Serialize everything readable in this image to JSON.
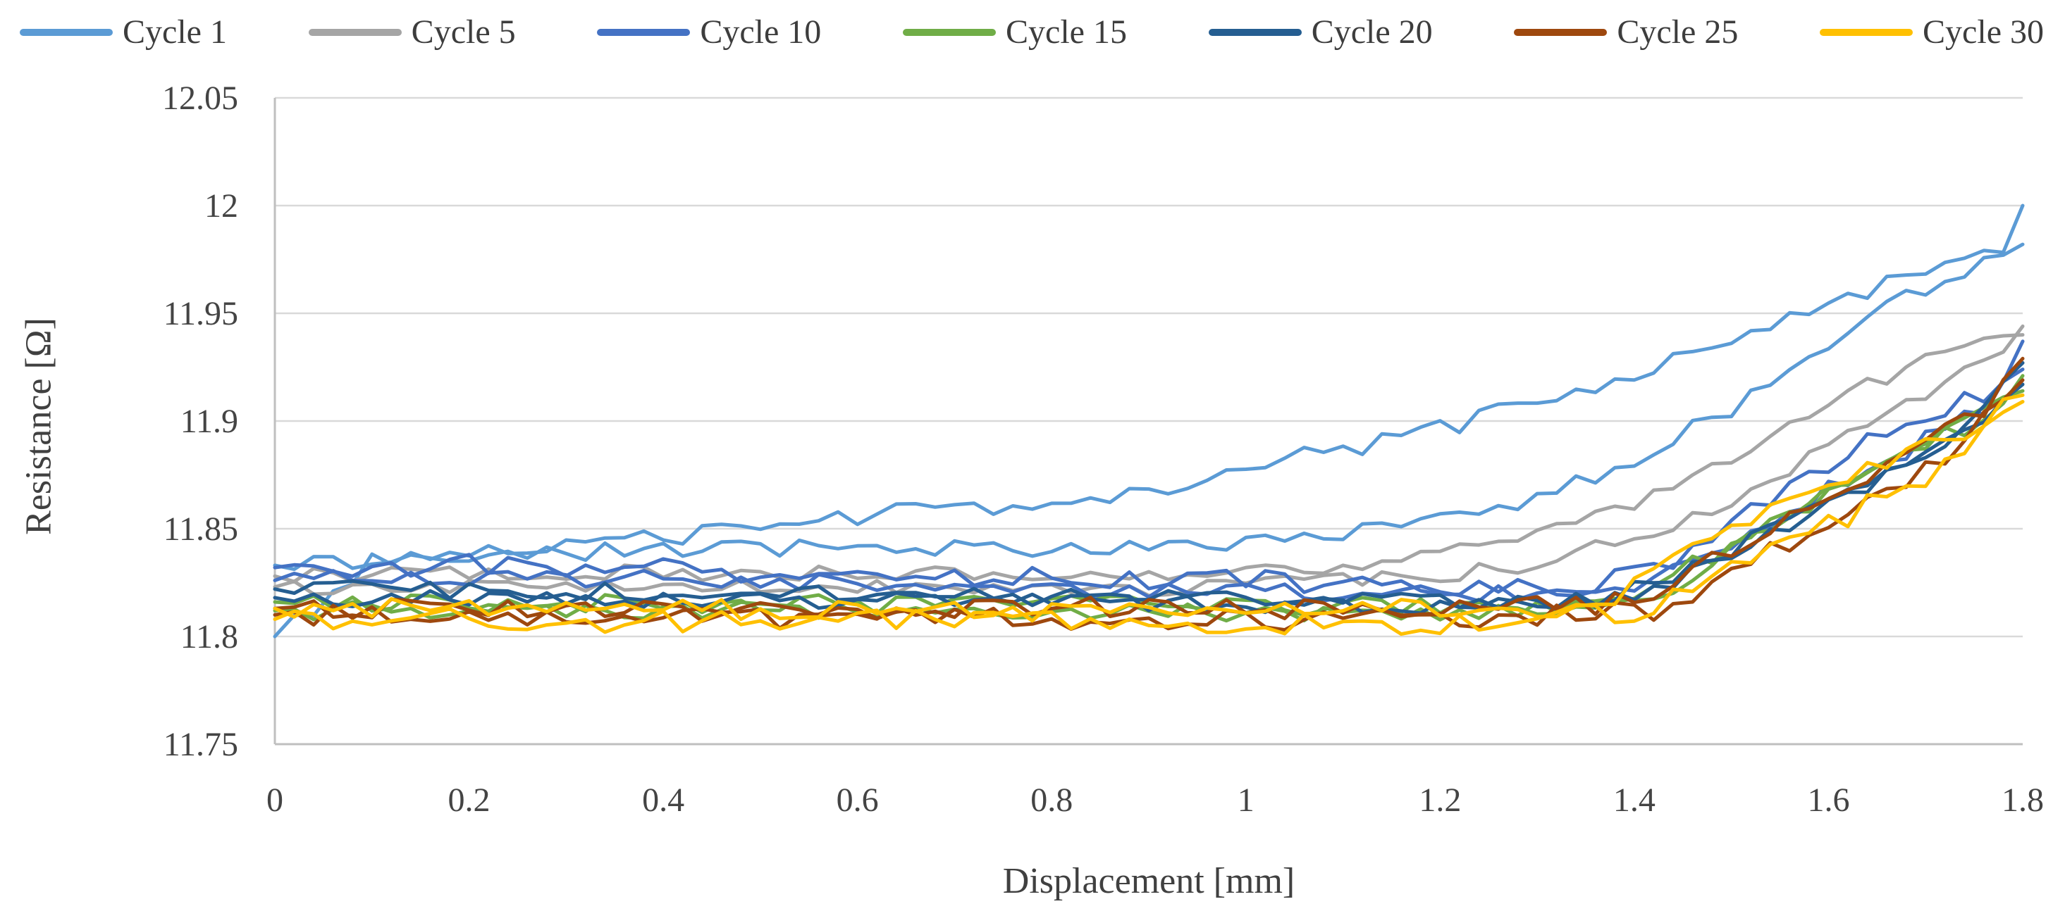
{
  "figure": {
    "background": "#FFFFFF",
    "text_color": "#404040",
    "tick_label_color": "#444444"
  },
  "chart_data": {
    "type": "line",
    "title": "",
    "xlabel": "Displacement [mm]",
    "ylabel": "Resistance [Ω]",
    "xlim": [
      0,
      1.8
    ],
    "ylim": [
      11.75,
      12.05
    ],
    "x_ticks": [
      0,
      0.2,
      0.4,
      0.6,
      0.8,
      1,
      1.2,
      1.4,
      1.6,
      1.8
    ],
    "x_tick_labels": [
      "0",
      "0.2",
      "0.4",
      "0.6",
      "0.8",
      "1",
      "1.2",
      "1.4",
      "1.6",
      "1.8"
    ],
    "y_ticks": [
      11.75,
      11.8,
      11.85,
      11.9,
      11.95,
      12,
      12.05
    ],
    "y_tick_labels": [
      "11.75",
      "11.8",
      "11.85",
      "11.9",
      "11.95",
      "12",
      "12.05"
    ],
    "grid": "horizontal",
    "gridline_color": "#D9D9D9",
    "axis_color": "#BFBFBF",
    "legend_position": "top",
    "line_width": 5,
    "x_start": 0,
    "x_step": 0.02,
    "points_per_trace": 91,
    "note": "Each cycle is drawn as two traces (loading and unloading) sharing one color; traces are noisy measurements reconstructed from anchor points plus noise amplitude.",
    "series": [
      {
        "name": "Cycle 1",
        "color": "#5B9BD5",
        "traces": [
          {
            "seed": 11,
            "noise": 0.0045,
            "anchors": [
              [
                0,
                11.8
              ],
              [
                0.04,
                11.812
              ],
              [
                0.1,
                11.834
              ],
              [
                0.2,
                11.84
              ],
              [
                0.35,
                11.843
              ],
              [
                0.5,
                11.852
              ],
              [
                0.65,
                11.858
              ],
              [
                0.8,
                11.862
              ],
              [
                0.88,
                11.867
              ],
              [
                1.0,
                11.878
              ],
              [
                1.1,
                11.887
              ],
              [
                1.2,
                11.896
              ],
              [
                1.3,
                11.909
              ],
              [
                1.4,
                11.923
              ],
              [
                1.5,
                11.938
              ],
              [
                1.6,
                11.953
              ],
              [
                1.68,
                11.968
              ],
              [
                1.72,
                11.976
              ],
              [
                1.76,
                11.982
              ],
              [
                1.79,
                11.981
              ],
              [
                1.8,
                12.0
              ]
            ]
          },
          {
            "seed": 12,
            "noise": 0.004,
            "anchors": [
              [
                0,
                11.833
              ],
              [
                0.2,
                11.838
              ],
              [
                0.4,
                11.84
              ],
              [
                0.6,
                11.841
              ],
              [
                0.8,
                11.84
              ],
              [
                0.95,
                11.842
              ],
              [
                1.05,
                11.846
              ],
              [
                1.15,
                11.851
              ],
              [
                1.25,
                11.857
              ],
              [
                1.3,
                11.865
              ],
              [
                1.4,
                11.882
              ],
              [
                1.5,
                11.906
              ],
              [
                1.6,
                11.936
              ],
              [
                1.7,
                11.962
              ],
              [
                1.78,
                11.978
              ],
              [
                1.8,
                11.982
              ]
            ]
          }
        ]
      },
      {
        "name": "Cycle 5",
        "color": "#A5A5A5",
        "traces": [
          {
            "seed": 21,
            "noise": 0.0035,
            "anchors": [
              [
                0,
                11.828
              ],
              [
                0.3,
                11.83
              ],
              [
                0.6,
                11.829
              ],
              [
                0.9,
                11.828
              ],
              [
                1.1,
                11.832
              ],
              [
                1.2,
                11.839
              ],
              [
                1.3,
                11.848
              ],
              [
                1.4,
                11.861
              ],
              [
                1.5,
                11.882
              ],
              [
                1.6,
                11.908
              ],
              [
                1.7,
                11.929
              ],
              [
                1.75,
                11.936
              ],
              [
                1.8,
                11.94
              ]
            ]
          },
          {
            "seed": 22,
            "noise": 0.0035,
            "anchors": [
              [
                0,
                11.823
              ],
              [
                0.3,
                11.824
              ],
              [
                0.6,
                11.824
              ],
              [
                0.9,
                11.822
              ],
              [
                1.2,
                11.828
              ],
              [
                1.3,
                11.834
              ],
              [
                1.4,
                11.846
              ],
              [
                1.5,
                11.862
              ],
              [
                1.6,
                11.888
              ],
              [
                1.7,
                11.913
              ],
              [
                1.77,
                11.928
              ],
              [
                1.79,
                11.93
              ],
              [
                1.8,
                11.944
              ]
            ]
          }
        ]
      },
      {
        "name": "Cycle 10",
        "color": "#4472C4",
        "traces": [
          {
            "seed": 31,
            "noise": 0.005,
            "anchors": [
              [
                0,
                11.832
              ],
              [
                0.2,
                11.833
              ],
              [
                0.4,
                11.831
              ],
              [
                0.7,
                11.828
              ],
              [
                1.0,
                11.826
              ],
              [
                1.2,
                11.824
              ],
              [
                1.35,
                11.823
              ],
              [
                1.45,
                11.838
              ],
              [
                1.55,
                11.866
              ],
              [
                1.65,
                11.892
              ],
              [
                1.72,
                11.904
              ],
              [
                1.77,
                11.916
              ],
              [
                1.8,
                11.937
              ]
            ]
          },
          {
            "seed": 32,
            "noise": 0.0045,
            "anchors": [
              [
                0,
                11.826
              ],
              [
                0.3,
                11.827
              ],
              [
                0.6,
                11.824
              ],
              [
                0.9,
                11.822
              ],
              [
                1.2,
                11.82
              ],
              [
                1.38,
                11.821
              ],
              [
                1.48,
                11.84
              ],
              [
                1.58,
                11.864
              ],
              [
                1.68,
                11.886
              ],
              [
                1.75,
                11.903
              ],
              [
                1.8,
                11.924
              ]
            ]
          }
        ]
      },
      {
        "name": "Cycle 15",
        "color": "#70AD47",
        "traces": [
          {
            "seed": 41,
            "noise": 0.0045,
            "anchors": [
              [
                0,
                11.816
              ],
              [
                0.3,
                11.816
              ],
              [
                0.6,
                11.815
              ],
              [
                0.9,
                11.815
              ],
              [
                1.2,
                11.813
              ],
              [
                1.38,
                11.814
              ],
              [
                1.48,
                11.838
              ],
              [
                1.58,
                11.862
              ],
              [
                1.68,
                11.884
              ],
              [
                1.76,
                11.902
              ],
              [
                1.8,
                11.921
              ]
            ]
          },
          {
            "seed": 42,
            "noise": 0.0045,
            "anchors": [
              [
                0,
                11.812
              ],
              [
                0.4,
                11.812
              ],
              [
                0.8,
                11.811
              ],
              [
                1.2,
                11.81
              ],
              [
                1.4,
                11.814
              ],
              [
                1.5,
                11.84
              ],
              [
                1.6,
                11.866
              ],
              [
                1.7,
                11.89
              ],
              [
                1.8,
                11.914
              ]
            ]
          }
        ]
      },
      {
        "name": "Cycle 20",
        "color": "#255E91",
        "traces": [
          {
            "seed": 51,
            "noise": 0.004,
            "anchors": [
              [
                0,
                11.822
              ],
              [
                0.3,
                11.821
              ],
              [
                0.6,
                11.819
              ],
              [
                0.9,
                11.818
              ],
              [
                1.2,
                11.817
              ],
              [
                1.36,
                11.817
              ],
              [
                1.46,
                11.832
              ],
              [
                1.56,
                11.854
              ],
              [
                1.66,
                11.876
              ],
              [
                1.74,
                11.894
              ],
              [
                1.8,
                11.927
              ]
            ]
          },
          {
            "seed": 52,
            "noise": 0.004,
            "anchors": [
              [
                0,
                11.818
              ],
              [
                0.4,
                11.817
              ],
              [
                0.8,
                11.816
              ],
              [
                1.2,
                11.814
              ],
              [
                1.4,
                11.817
              ],
              [
                1.5,
                11.838
              ],
              [
                1.6,
                11.861
              ],
              [
                1.7,
                11.884
              ],
              [
                1.76,
                11.899
              ],
              [
                1.8,
                11.917
              ]
            ]
          }
        ]
      },
      {
        "name": "Cycle 25",
        "color": "#9E480E",
        "traces": [
          {
            "seed": 61,
            "noise": 0.005,
            "anchors": [
              [
                0,
                11.813
              ],
              [
                0.3,
                11.812
              ],
              [
                0.6,
                11.812
              ],
              [
                0.9,
                11.814
              ],
              [
                1.2,
                11.812
              ],
              [
                1.4,
                11.816
              ],
              [
                1.5,
                11.841
              ],
              [
                1.6,
                11.863
              ],
              [
                1.7,
                11.888
              ],
              [
                1.76,
                11.906
              ],
              [
                1.8,
                11.929
              ]
            ]
          },
          {
            "seed": 62,
            "noise": 0.005,
            "anchors": [
              [
                0,
                11.81
              ],
              [
                0.4,
                11.809
              ],
              [
                0.8,
                11.808
              ],
              [
                1.2,
                11.808
              ],
              [
                1.42,
                11.812
              ],
              [
                1.52,
                11.834
              ],
              [
                1.62,
                11.857
              ],
              [
                1.72,
                11.882
              ],
              [
                1.8,
                11.919
              ]
            ]
          }
        ]
      },
      {
        "name": "Cycle 30",
        "color": "#FFC000",
        "traces": [
          {
            "seed": 71,
            "noise": 0.0055,
            "anchors": [
              [
                0,
                11.813
              ],
              [
                0.3,
                11.812
              ],
              [
                0.6,
                11.812
              ],
              [
                0.9,
                11.813
              ],
              [
                1.2,
                11.812
              ],
              [
                1.36,
                11.813
              ],
              [
                1.46,
                11.838
              ],
              [
                1.56,
                11.86
              ],
              [
                1.66,
                11.879
              ],
              [
                1.75,
                11.897
              ],
              [
                1.8,
                11.912
              ]
            ]
          },
          {
            "seed": 72,
            "noise": 0.0055,
            "anchors": [
              [
                0,
                11.808
              ],
              [
                0.4,
                11.807
              ],
              [
                0.8,
                11.807
              ],
              [
                1.2,
                11.806
              ],
              [
                1.4,
                11.811
              ],
              [
                1.5,
                11.83
              ],
              [
                1.6,
                11.852
              ],
              [
                1.7,
                11.873
              ],
              [
                1.8,
                11.909
              ]
            ]
          }
        ]
      }
    ]
  }
}
